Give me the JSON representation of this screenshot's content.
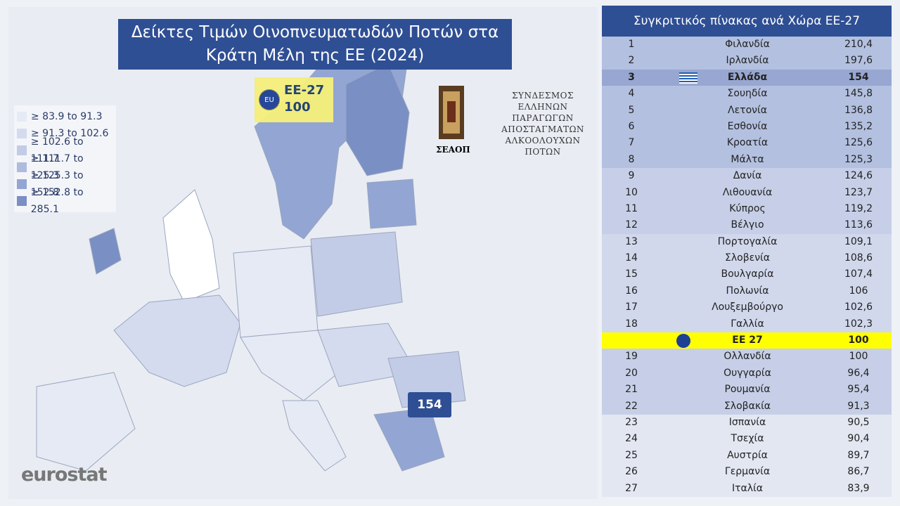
{
  "map": {
    "title_lines": [
      "Δείκτες Τιμών Οινοπνευματωδών Ποτών στα",
      "Κράτη Μέλη της ΕΕ (2024)"
    ],
    "eu_badge": "EU",
    "eu_label": "ΕΕ-27",
    "eu_value": "100",
    "legend": [
      "≥ 83.9 to 91.3",
      "≥ 91.3 to 102.6",
      "≥ 102.6 to 111.7",
      "≥ 111.7 to 125.3",
      "≥ 125.3 to 152.8",
      "≥ 152.8 to 285.1"
    ],
    "legend_colors": [
      "#e6eaf4",
      "#d4dbee",
      "#c3cce6",
      "#aebbdd",
      "#93a5d2",
      "#7a8fc4"
    ],
    "greece_callout": "154",
    "source": "eurostat"
  },
  "logo": {
    "lines": [
      "ΣΥΝΔΕΣΜΟΣ",
      "ΕΛΛΗΝΩΝ ΠΑΡΑΓΩΓΩΝ",
      "ΑΠΟΣΤΑΓΜΑΤΩΝ",
      "ΑΛΚΟΟΛΟΥΧΩΝ",
      "ΠΟΤΩΝ"
    ],
    "abbr": "ΣΕΑΟΠ"
  },
  "table": {
    "title": "Συγκριτικός πίνακας ανά Χώρα ΕΕ-27",
    "rows": [
      {
        "rank": "1",
        "name": "Φιλανδία",
        "value": "210,4"
      },
      {
        "rank": "2",
        "name": "Ιρλανδία",
        "value": "197,6"
      },
      {
        "rank": "3",
        "name": "Ελλάδα",
        "value": "154"
      },
      {
        "rank": "4",
        "name": "Σουηδία",
        "value": "145,8"
      },
      {
        "rank": "5",
        "name": "Λετονία",
        "value": "136,8"
      },
      {
        "rank": "6",
        "name": "Εσθονία",
        "value": "135,2"
      },
      {
        "rank": "7",
        "name": "Κροατία",
        "value": "125,6"
      },
      {
        "rank": "8",
        "name": "Μάλτα",
        "value": "125,3"
      },
      {
        "rank": "9",
        "name": "Δανία",
        "value": "124,6"
      },
      {
        "rank": "10",
        "name": "Λιθουανία",
        "value": "123,7"
      },
      {
        "rank": "11",
        "name": "Κύπρος",
        "value": "119,2"
      },
      {
        "rank": "12",
        "name": "Βέλγιο",
        "value": "113,6"
      },
      {
        "rank": "13",
        "name": "Πορτογαλία",
        "value": "109,1"
      },
      {
        "rank": "14",
        "name": "Σλοβενία",
        "value": "108,6"
      },
      {
        "rank": "15",
        "name": "Βουλγαρία",
        "value": "107,4"
      },
      {
        "rank": "16",
        "name": "Πολωνία",
        "value": "106"
      },
      {
        "rank": "17",
        "name": "Λουξεμβούργο",
        "value": "102,6"
      },
      {
        "rank": "18",
        "name": "Γαλλία",
        "value": "102,3"
      },
      {
        "name": "ΕΕ 27",
        "value": "100"
      },
      {
        "rank": "19",
        "name": "Ολλανδία",
        "value": "100"
      },
      {
        "rank": "20",
        "name": "Ουγγαρία",
        "value": "96,4"
      },
      {
        "rank": "21",
        "name": "Ρουμανία",
        "value": "95,4"
      },
      {
        "rank": "22",
        "name": "Σλοβακία",
        "value": "91,3"
      },
      {
        "rank": "23",
        "name": "Ισπανία",
        "value": "90,5"
      },
      {
        "rank": "24",
        "name": "Τσεχία",
        "value": "90,4"
      },
      {
        "rank": "25",
        "name": "Αυστρία",
        "value": "89,7"
      },
      {
        "rank": "26",
        "name": "Γερμανία",
        "value": "86,7"
      },
      {
        "rank": "27",
        "name": "Ιταλία",
        "value": "83,9"
      }
    ]
  }
}
